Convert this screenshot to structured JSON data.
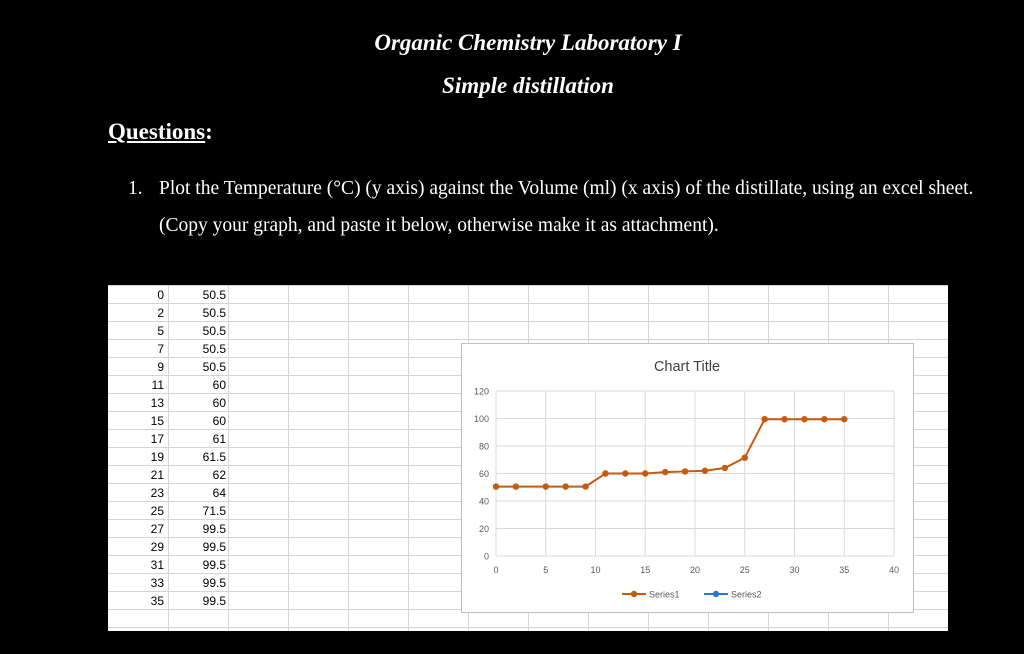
{
  "document": {
    "title": "Organic Chemistry Laboratory I",
    "subtitle": "Simple distillation",
    "questions_heading": "Questions",
    "questions_colon": ":",
    "question_number": "1.",
    "question_text": "Plot the Temperature (°C) (y axis) against the Volume (ml) (x axis) of the distillate, using an excel sheet. (Copy your graph, and paste it below, otherwise make it as attachment)."
  },
  "spreadsheet": {
    "rows": [
      {
        "a": "0",
        "b": "50.5"
      },
      {
        "a": "2",
        "b": "50.5"
      },
      {
        "a": "5",
        "b": "50.5"
      },
      {
        "a": "7",
        "b": "50.5"
      },
      {
        "a": "9",
        "b": "50.5"
      },
      {
        "a": "11",
        "b": "60"
      },
      {
        "a": "13",
        "b": "60"
      },
      {
        "a": "15",
        "b": "60"
      },
      {
        "a": "17",
        "b": "61"
      },
      {
        "a": "19",
        "b": "61.5"
      },
      {
        "a": "21",
        "b": "62"
      },
      {
        "a": "23",
        "b": "64"
      },
      {
        "a": "25",
        "b": "71.5"
      },
      {
        "a": "27",
        "b": "99.5"
      },
      {
        "a": "29",
        "b": "99.5"
      },
      {
        "a": "31",
        "b": "99.5"
      },
      {
        "a": "33",
        "b": "99.5"
      },
      {
        "a": "35",
        "b": "99.5"
      }
    ]
  },
  "chart_data": {
    "type": "scatter",
    "title": "Chart Title",
    "xlabel": "",
    "ylabel": "",
    "xlim": [
      0,
      40
    ],
    "ylim": [
      0,
      120
    ],
    "xticks": [
      0,
      5,
      10,
      15,
      20,
      25,
      30,
      35,
      40
    ],
    "yticks": [
      0,
      20,
      40,
      60,
      80,
      100,
      120
    ],
    "grid": true,
    "legend_position": "bottom",
    "series": [
      {
        "name": "Series1",
        "color": "#c55a11",
        "x": [
          0,
          2,
          5,
          7,
          9,
          11,
          13,
          15,
          17,
          19,
          21,
          23,
          25,
          27,
          29,
          31,
          33,
          35
        ],
        "y": [
          50.5,
          50.5,
          50.5,
          50.5,
          50.5,
          60,
          60,
          60,
          61,
          61.5,
          62,
          64,
          71.5,
          99.5,
          99.5,
          99.5,
          99.5,
          99.5
        ]
      },
      {
        "name": "Series2",
        "color": "#2e75d6",
        "x": [],
        "y": []
      }
    ]
  }
}
